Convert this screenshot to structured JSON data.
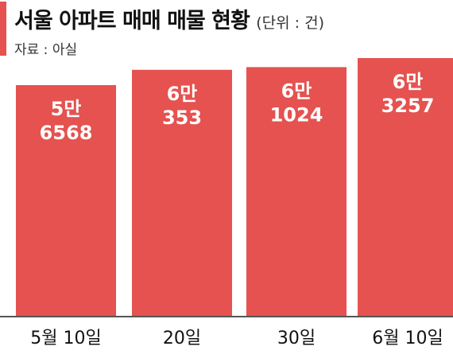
{
  "header": {
    "title": "서울 아파트 매매 매물 현황",
    "unit": "(단위 : 건)",
    "source": "자료 : 아실"
  },
  "colors": {
    "accent": "#e5524f",
    "bar": "#e5524f",
    "baseline": "#555555"
  },
  "chart_data": {
    "type": "bar",
    "categories": [
      "5월 10일",
      "20일",
      "30일",
      "6월 10일"
    ],
    "values": [
      56568,
      60353,
      61024,
      63257
    ],
    "data_labels": [
      [
        "5만",
        "6568"
      ],
      [
        "6만",
        "353"
      ],
      [
        "6만",
        "1024"
      ],
      [
        "6만",
        "3257"
      ]
    ],
    "title": "서울 아파트 매매 매물 현황",
    "unit": "(단위 : 건)",
    "source": "자료 : 아실",
    "xlabel": "",
    "ylabel": "",
    "grid": false,
    "legend": "none"
  }
}
